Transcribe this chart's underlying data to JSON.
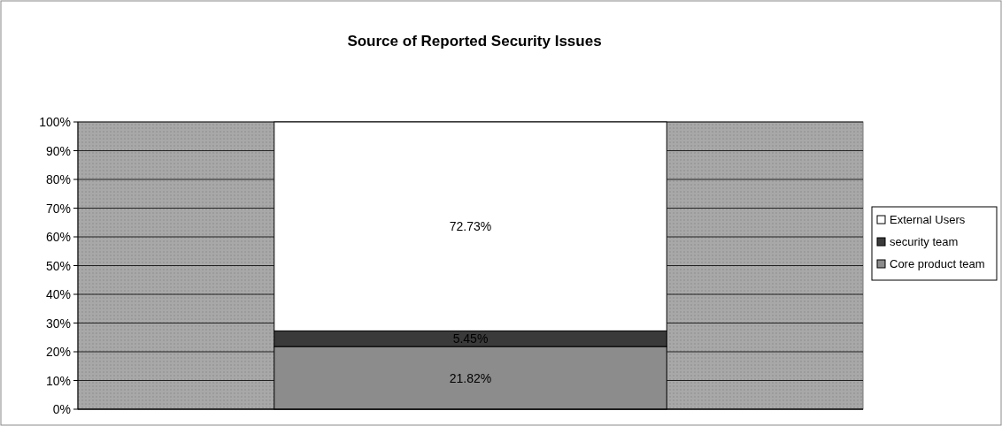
{
  "chart_data": {
    "type": "bar",
    "title": "Source of Reported Security Issues",
    "stacked": true,
    "categories": [
      null
    ],
    "series": [
      {
        "name": "Core product team",
        "color": "#8c8c8c",
        "values": [
          21.82
        ],
        "value_labels": [
          "21.82%"
        ]
      },
      {
        "name": "security team",
        "color": "#3a3a3a",
        "values": [
          5.45
        ],
        "value_labels": [
          "5.45%"
        ]
      },
      {
        "name": "External Users",
        "color": "#ffffff",
        "values": [
          72.73
        ],
        "value_labels": [
          "72.73%"
        ]
      }
    ],
    "ylim": [
      0,
      100
    ],
    "yticks": [
      {
        "value": 0,
        "label": "0%"
      },
      {
        "value": 10,
        "label": "10%"
      },
      {
        "value": 20,
        "label": "20%"
      },
      {
        "value": 30,
        "label": "30%"
      },
      {
        "value": 40,
        "label": "40%"
      },
      {
        "value": 50,
        "label": "50%"
      },
      {
        "value": 60,
        "label": "60%"
      },
      {
        "value": 70,
        "label": "70%"
      },
      {
        "value": 80,
        "label": "80%"
      },
      {
        "value": 90,
        "label": "90%"
      },
      {
        "value": 100,
        "label": "100%"
      }
    ],
    "grid": "y",
    "legend": "right"
  }
}
